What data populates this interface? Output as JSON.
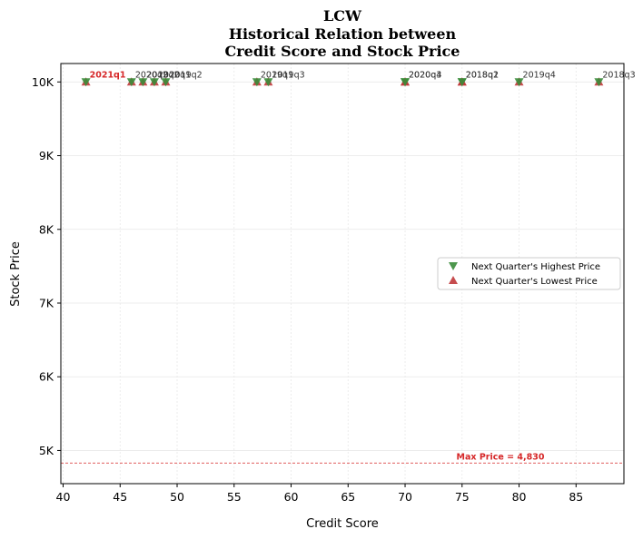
{
  "chart_data": {
    "type": "scatter",
    "title_lines": [
      "LCW",
      "Historical Relation between",
      "Credit Score and Stock Price"
    ],
    "xlabel": "Credit Score",
    "ylabel": "Stock Price",
    "xlim": [
      39.8,
      89.2
    ],
    "ylim": [
      4550,
      10250
    ],
    "x_ticks": [
      40,
      45,
      50,
      55,
      60,
      65,
      70,
      75,
      80,
      85
    ],
    "x_tick_labels": [
      "40",
      "45",
      "50",
      "55",
      "60",
      "65",
      "70",
      "75",
      "80",
      "85"
    ],
    "y_ticks": [
      5000,
      6000,
      7000,
      8000,
      9000,
      10000
    ],
    "y_tick_labels": [
      "5K",
      "6K",
      "7K",
      "8K",
      "9K",
      "10K"
    ],
    "grid": true,
    "legend_position": "center-right",
    "series": [
      {
        "name": "Next Quarter's Highest Price",
        "marker": "triangle-down",
        "color": "#3a8c3a"
      },
      {
        "name": "Next Quarter's Lowest Price",
        "marker": "triangle-up",
        "color": "#c0393b"
      }
    ],
    "points": [
      {
        "label": "2021q1",
        "x": 42,
        "high": 10000,
        "low": 10000,
        "highlight": true
      },
      {
        "label": "2020q2",
        "x": 46,
        "high": 10000,
        "low": 10000,
        "highlight": false
      },
      {
        "label": "2019q2",
        "x": 47,
        "high": 10000,
        "low": 10000,
        "highlight": false
      },
      {
        "label": "2020q1",
        "x": 48,
        "high": 10000,
        "low": 10000,
        "highlight": false
      },
      {
        "label": "2019q2",
        "x": 49,
        "high": 10000,
        "low": 10000,
        "highlight": false
      },
      {
        "label": "2019q1",
        "x": 57,
        "high": 10000,
        "low": 10000,
        "highlight": false
      },
      {
        "label": "2019q3",
        "x": 58,
        "high": 10000,
        "low": 10000,
        "highlight": false
      },
      {
        "label": "2020q3",
        "x": 70,
        "high": 10000,
        "low": 10000,
        "highlight": false
      },
      {
        "label": "2020q4",
        "x": 70,
        "high": 10000,
        "low": 10000,
        "highlight": false
      },
      {
        "label": "2018q2",
        "x": 75,
        "high": 10000,
        "low": 10000,
        "highlight": false
      },
      {
        "label": "2018q1",
        "x": 75,
        "high": 10000,
        "low": 10000,
        "highlight": false
      },
      {
        "label": "2019q4",
        "x": 80,
        "high": 10000,
        "low": 10000,
        "highlight": false
      },
      {
        "label": "2018q3",
        "x": 87,
        "high": 10000,
        "low": 10000,
        "highlight": false
      }
    ],
    "reference_line": {
      "y": 4830,
      "label": "Max Price = 4,830",
      "color": "#d62728"
    }
  }
}
